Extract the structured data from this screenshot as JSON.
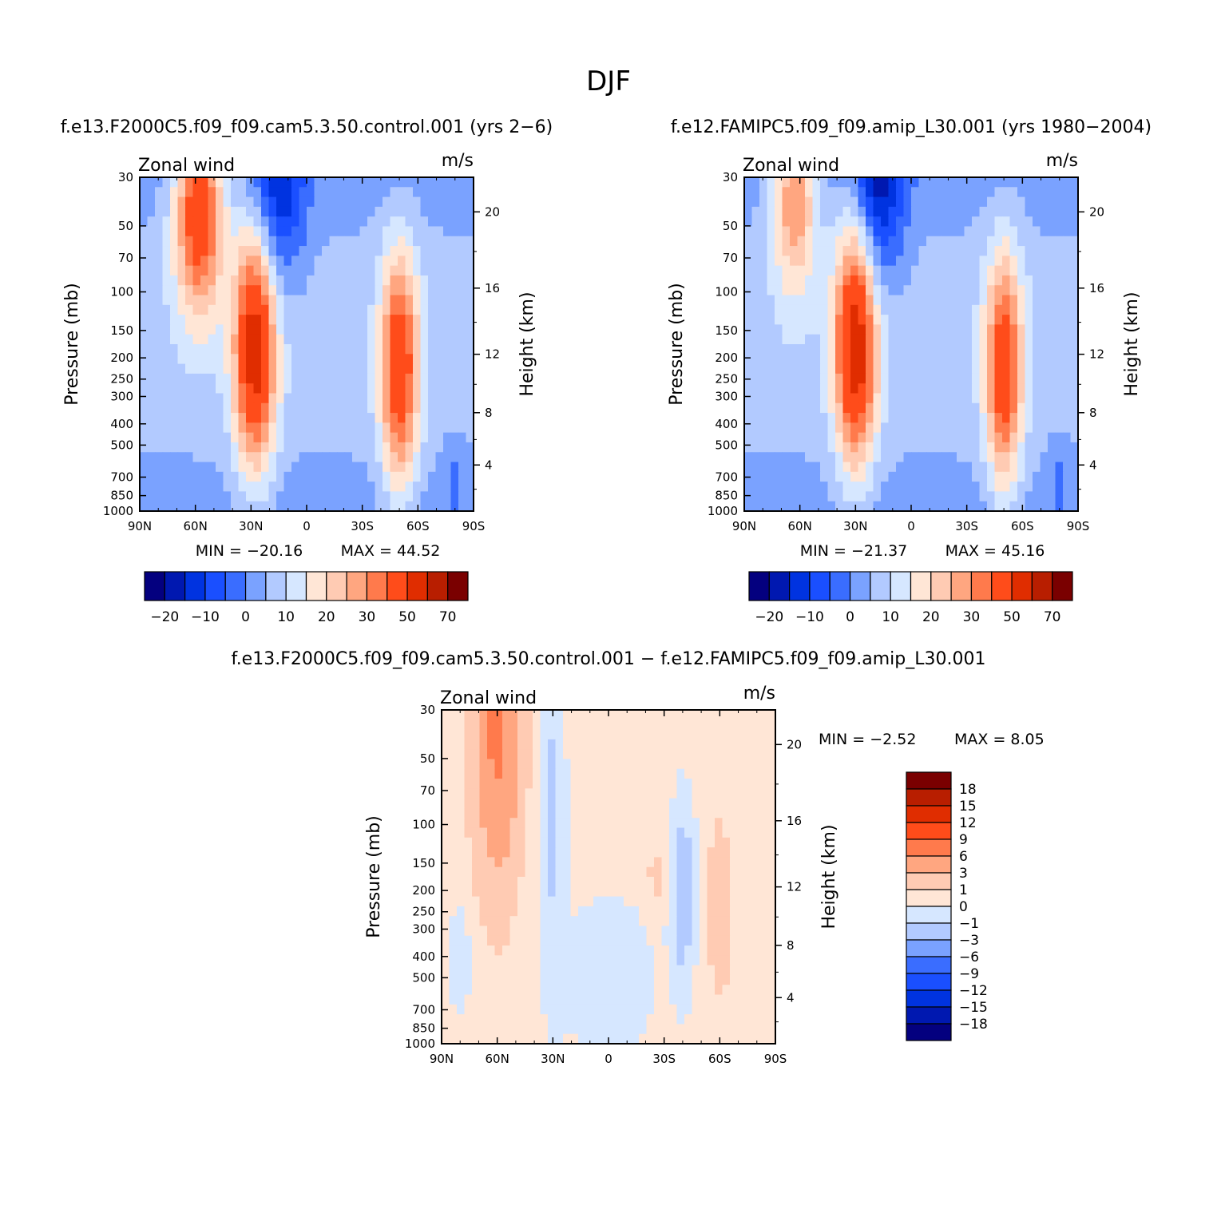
{
  "figure": {
    "title": "DJF",
    "diff_title": "f.e13.F2000C5.f09_f09.cam5.3.50.control.001 − f.e12.FAMIPC5.f09_f09.amip_L30.001"
  },
  "colors": {
    "full_levels": [
      "#04007f",
      "#0018b0",
      "#0033e0",
      "#1a4fff",
      "#3a6dff",
      "#7aa2ff",
      "#b2caff",
      "#d6e7ff",
      "#ffe6d6",
      "#ffcbb3",
      "#ffa680",
      "#ff7a4c",
      "#ff4c1a",
      "#e02d00",
      "#b81e00",
      "#7a0000"
    ],
    "diff_levels": [
      "#04007f",
      "#0018b0",
      "#0033e0",
      "#1a4fff",
      "#3a6dff",
      "#7aa2ff",
      "#b2caff",
      "#d6e7ff",
      "#ffe6d6",
      "#ffcbb3",
      "#ffa680",
      "#ff7a4c",
      "#ff4c1a",
      "#e02d00",
      "#b81e00",
      "#7a0000"
    ]
  },
  "chart_data": [
    {
      "type": "heatmap",
      "id": "control",
      "title": "f.e13.F2000C5.f09_f09.cam5.3.50.control.001 (yrs 2−6)",
      "left_string": "Zonal wind",
      "right_string": "m/s",
      "xlabel": "",
      "ylabel": "Pressure (mb)",
      "y2label": "Height (km)",
      "x_ticks": [
        "90N",
        "60N",
        "30N",
        "0",
        "30S",
        "60S",
        "90S"
      ],
      "y_ticks": [
        "30",
        "50",
        "70",
        "100",
        "150",
        "200",
        "250",
        "300",
        "400",
        "500",
        "700",
        "850",
        "1000"
      ],
      "y2_ticks": [
        "20",
        "16",
        "12",
        "8",
        "4"
      ],
      "min_label": "MIN =  −20.16",
      "max_label": "MAX =   44.52",
      "min": -20.16,
      "max": 44.52,
      "colorbar_labels": [
        "−20",
        "−10",
        "0",
        "10",
        "20",
        "30",
        "50",
        "70"
      ],
      "features": [
        {
          "lat": 58,
          "lev": 0.1,
          "amp": 38,
          "sx": 13,
          "sy": 0.3
        },
        {
          "lat": 28,
          "lev": 0.52,
          "amp": 44,
          "sx": 11,
          "sy": 0.35
        },
        {
          "lat": -50,
          "lev": 0.58,
          "amp": 36,
          "sx": 10,
          "sy": 0.35
        },
        {
          "lat": 15,
          "lev": 0.02,
          "amp": -18,
          "sx": 14,
          "sy": 0.3
        },
        {
          "lat": -80,
          "lev": 0.9,
          "amp": -5,
          "sx": 6,
          "sy": 0.12
        }
      ]
    },
    {
      "type": "heatmap",
      "id": "amip",
      "title": "f.e12.FAMIPC5.f09_f09.amip_L30.001 (yrs 1980−2004)",
      "left_string": "Zonal wind",
      "right_string": "m/s",
      "xlabel": "",
      "ylabel": "Pressure (mb)",
      "y2label": "Height (km)",
      "x_ticks": [
        "90N",
        "60N",
        "30N",
        "0",
        "30S",
        "60S",
        "90S"
      ],
      "y_ticks": [
        "30",
        "50",
        "70",
        "100",
        "150",
        "200",
        "250",
        "300",
        "400",
        "500",
        "700",
        "850",
        "1000"
      ],
      "y2_ticks": [
        "20",
        "16",
        "12",
        "8",
        "4"
      ],
      "min_label": "MIN =  −21.37",
      "max_label": "MAX =   45.16",
      "min": -21.37,
      "max": 45.16,
      "colorbar_labels": [
        "−20",
        "−10",
        "0",
        "10",
        "20",
        "30",
        "50",
        "70"
      ],
      "features": [
        {
          "lat": 63,
          "lev": 0.05,
          "amp": 26,
          "sx": 12,
          "sy": 0.28
        },
        {
          "lat": 30,
          "lev": 0.5,
          "amp": 45,
          "sx": 11,
          "sy": 0.36
        },
        {
          "lat": -50,
          "lev": 0.58,
          "amp": 34,
          "sx": 10,
          "sy": 0.35
        },
        {
          "lat": 18,
          "lev": 0.02,
          "amp": -21,
          "sx": 14,
          "sy": 0.3
        },
        {
          "lat": -80,
          "lev": 0.9,
          "amp": -5,
          "sx": 6,
          "sy": 0.12
        }
      ]
    },
    {
      "type": "heatmap",
      "id": "difference",
      "title": "f.e13.F2000C5.f09_f09.cam5.3.50.control.001 − f.e12.FAMIPC5.f09_f09.amip_L30.001",
      "left_string": "Zonal wind",
      "right_string": "m/s",
      "xlabel": "",
      "ylabel": "Pressure (mb)",
      "y2label": "Height (km)",
      "x_ticks": [
        "90N",
        "60N",
        "30N",
        "0",
        "30S",
        "60S",
        "90S"
      ],
      "y_ticks": [
        "30",
        "50",
        "70",
        "100",
        "150",
        "200",
        "250",
        "300",
        "400",
        "500",
        "700",
        "850",
        "1000"
      ],
      "y2_ticks": [
        "20",
        "16",
        "12",
        "8",
        "4"
      ],
      "min_label": "MIN =    −2.52",
      "max_label": "MAX =    8.05",
      "min": -2.52,
      "max": 8.05,
      "colorbar_labels": [
        "18",
        "15",
        "12",
        "9",
        "6",
        "3",
        "1",
        "0",
        "−1",
        "−3",
        "−6",
        "−9",
        "−12",
        "−15",
        "−18"
      ],
      "features": [
        {
          "lat": 60,
          "lev": 0.05,
          "amp": 6.5,
          "sx": 12,
          "sy": 0.45
        },
        {
          "lat": 30,
          "lev": 0.3,
          "amp": -1.6,
          "sx": 6,
          "sy": 0.5
        },
        {
          "lat": -40,
          "lev": 0.55,
          "amp": -2.5,
          "sx": 6,
          "sy": 0.25
        },
        {
          "lat": -60,
          "lev": 0.6,
          "amp": 2.2,
          "sx": 6,
          "sy": 0.25
        },
        {
          "lat": -25,
          "lev": 0.5,
          "amp": 1.2,
          "sx": 4,
          "sy": 0.1
        },
        {
          "lat": 0,
          "lev": 0.8,
          "amp": -0.8,
          "sx": 25,
          "sy": 0.25
        },
        {
          "lat": 80,
          "lev": 0.75,
          "amp": -1.2,
          "sx": 5,
          "sy": 0.15
        }
      ]
    }
  ]
}
